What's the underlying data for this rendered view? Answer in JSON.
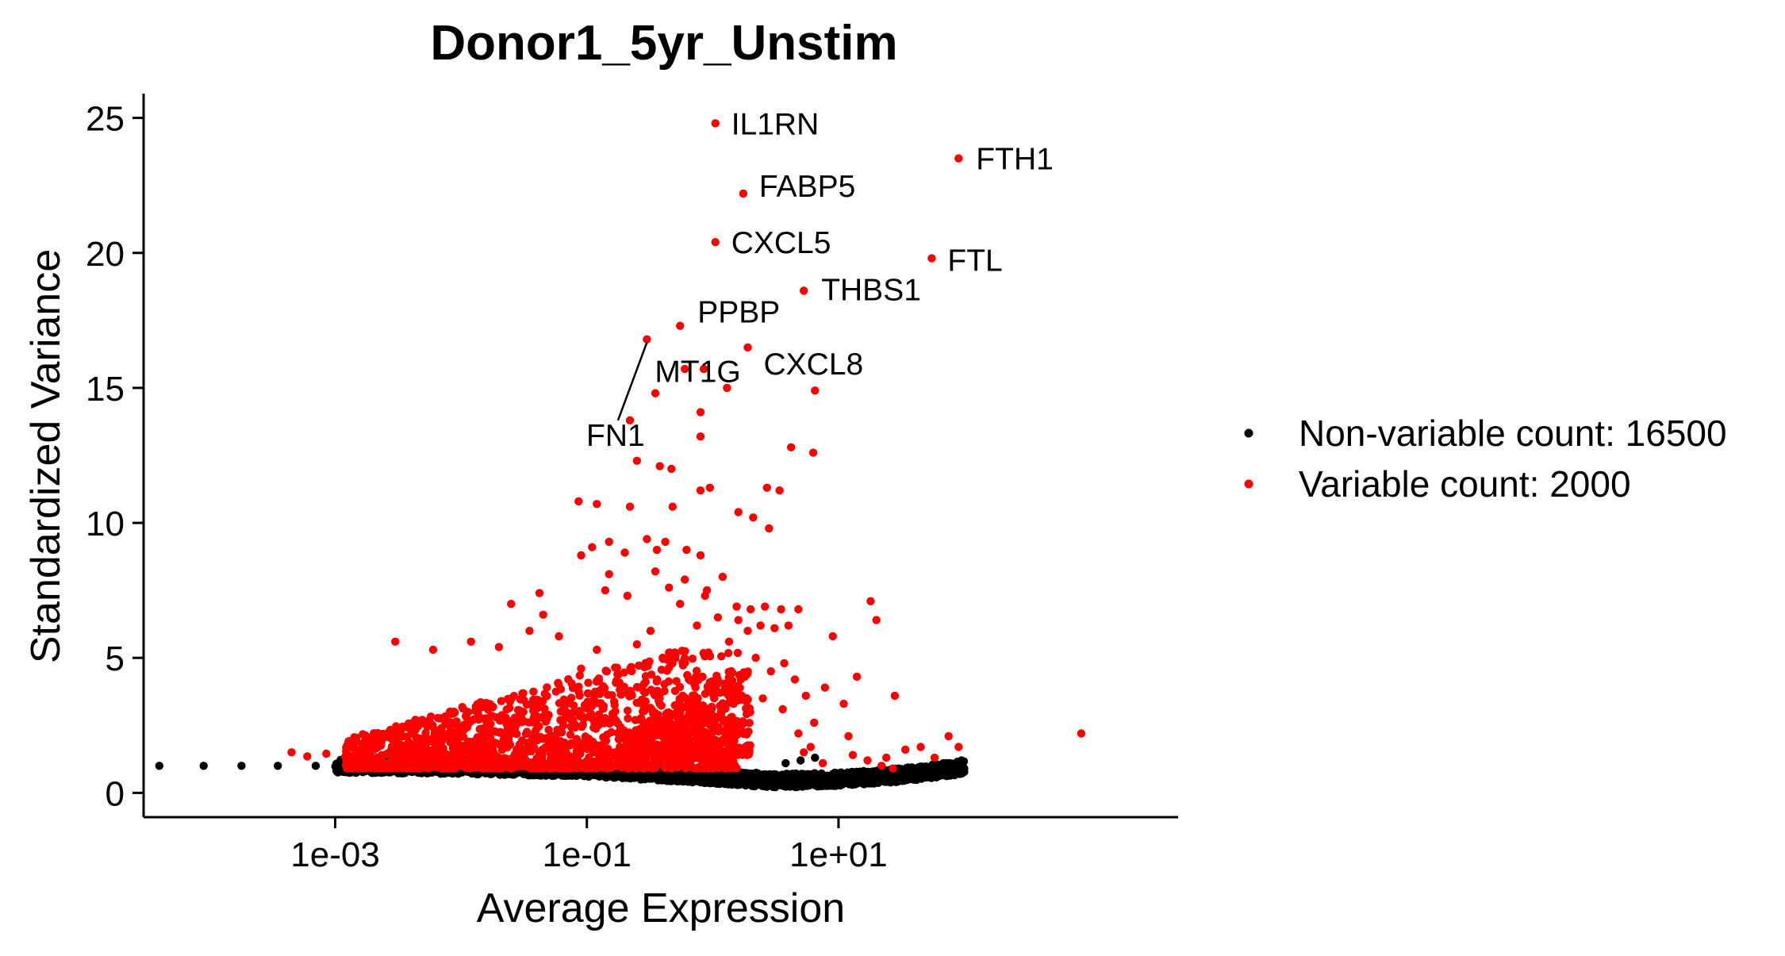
{
  "chart_data": {
    "type": "scatter",
    "title": "Donor1_5yr_Unstim",
    "xlabel": "Average Expression",
    "ylabel": "Standardized Variance",
    "x_scale": "log10",
    "xlim": [
      3e-05,
      5000
    ],
    "ylim": [
      -0.9,
      25.9
    ],
    "x_ticks": [
      {
        "value": 0.001,
        "label": "1e-03"
      },
      {
        "value": 0.1,
        "label": "1e-01"
      },
      {
        "value": 10,
        "label": "1e+01"
      }
    ],
    "y_ticks": [
      {
        "value": 0,
        "label": "0"
      },
      {
        "value": 5,
        "label": "5"
      },
      {
        "value": 10,
        "label": "10"
      },
      {
        "value": 15,
        "label": "15"
      },
      {
        "value": 20,
        "label": "20"
      },
      {
        "value": 25,
        "label": "25"
      }
    ],
    "grid": false,
    "legend_position": "right",
    "series": [
      {
        "name": "Non-variable count: 16500",
        "color": "#000000"
      },
      {
        "name": "Variable count: 2000",
        "color": "#FF0000"
      }
    ],
    "labeled_genes": [
      {
        "label": "IL1RN",
        "x": 1.05,
        "y": 24.8
      },
      {
        "label": "FTH1",
        "x": 90,
        "y": 23.5
      },
      {
        "label": "FABP5",
        "x": 1.75,
        "y": 22.2
      },
      {
        "label": "CXCL5",
        "x": 1.05,
        "y": 20.4
      },
      {
        "label": "FTL",
        "x": 55,
        "y": 19.8
      },
      {
        "label": "THBS1",
        "x": 5.3,
        "y": 18.6
      },
      {
        "label": "PPBP",
        "x": 0.55,
        "y": 17.3
      },
      {
        "label": "CXCL8",
        "x": 1.9,
        "y": 16.5
      },
      {
        "label": "MT1G",
        "x": 0.3,
        "y": 16.8
      },
      {
        "label": "FN1",
        "x": 0.22,
        "y": 13.8
      }
    ],
    "variable_points": [
      [
        0.85,
        15.7
      ],
      [
        0.6,
        15.7
      ],
      [
        1.3,
        15.0
      ],
      [
        6.5,
        14.9
      ],
      [
        0.8,
        14.1
      ],
      [
        0.35,
        14.8
      ],
      [
        0.8,
        13.2
      ],
      [
        4.2,
        12.8
      ],
      [
        6.3,
        12.6
      ],
      [
        0.25,
        12.3
      ],
      [
        0.38,
        12.1
      ],
      [
        0.47,
        12.0
      ],
      [
        0.95,
        11.3
      ],
      [
        2.7,
        11.3
      ],
      [
        3.4,
        11.2
      ],
      [
        0.086,
        10.8
      ],
      [
        0.12,
        10.7
      ],
      [
        0.22,
        10.6
      ],
      [
        0.48,
        10.6
      ],
      [
        0.8,
        11.2
      ],
      [
        1.6,
        10.4
      ],
      [
        2.1,
        10.2
      ],
      [
        2.8,
        9.8
      ],
      [
        0.15,
        9.3
      ],
      [
        0.3,
        9.4
      ],
      [
        0.42,
        9.3
      ],
      [
        0.2,
        8.9
      ],
      [
        0.09,
        8.8
      ],
      [
        0.11,
        9.1
      ],
      [
        0.36,
        9.0
      ],
      [
        0.62,
        9.0
      ],
      [
        0.8,
        8.8
      ],
      [
        0.15,
        8.1
      ],
      [
        0.35,
        8.2
      ],
      [
        0.6,
        7.9
      ],
      [
        0.14,
        7.5
      ],
      [
        0.45,
        7.6
      ],
      [
        0.21,
        7.3
      ],
      [
        0.55,
        7.0
      ],
      [
        0.87,
        7.3
      ],
      [
        1.2,
        8.0
      ],
      [
        0.9,
        7.5
      ],
      [
        1.55,
        6.9
      ],
      [
        2.0,
        6.8
      ],
      [
        2.6,
        6.9
      ],
      [
        3.5,
        6.8
      ],
      [
        4.8,
        6.8
      ],
      [
        18,
        7.1
      ],
      [
        20,
        6.4
      ],
      [
        1.1,
        6.5
      ],
      [
        1.6,
        6.4
      ],
      [
        1.9,
        6.0
      ],
      [
        2.4,
        6.2
      ],
      [
        3.1,
        6.1
      ],
      [
        4.0,
        6.2
      ],
      [
        9,
        5.8
      ],
      [
        0.32,
        6.0
      ],
      [
        0.75,
        6.2
      ],
      [
        0.045,
        6.6
      ],
      [
        0.042,
        7.4
      ],
      [
        0.025,
        7.0
      ],
      [
        0.012,
        5.6
      ],
      [
        0.003,
        5.6
      ],
      [
        0.006,
        5.3
      ],
      [
        0.02,
        5.4
      ],
      [
        0.035,
        6.0
      ],
      [
        0.06,
        5.8
      ],
      [
        1.35,
        5.6
      ],
      [
        2.2,
        5.0
      ],
      [
        3.7,
        4.8
      ],
      [
        2.9,
        4.5
      ],
      [
        1.8,
        4.3
      ],
      [
        0.95,
        4.1
      ],
      [
        0.5,
        5.2
      ],
      [
        0.25,
        5.5
      ],
      [
        0.12,
        5.3
      ],
      [
        0.09,
        4.6
      ],
      [
        4.5,
        4.2
      ],
      [
        5.5,
        3.6
      ],
      [
        7.8,
        3.9
      ],
      [
        13,
        1.4
      ],
      [
        7.5,
        1.1
      ],
      [
        5.3,
        1.5
      ],
      [
        4.8,
        2.2
      ],
      [
        6.4,
        2.6
      ],
      [
        3.6,
        3.1
      ],
      [
        2.5,
        3.5
      ],
      [
        6.0,
        1.7
      ],
      [
        12,
        2.1
      ],
      [
        22,
        1.0
      ],
      [
        27,
        0.9
      ],
      [
        34,
        1.6
      ],
      [
        17,
        1.2
      ],
      [
        11,
        3.3
      ],
      [
        28,
        3.6
      ],
      [
        14,
        4.3
      ],
      [
        24,
        1.3
      ],
      [
        45,
        1.7
      ],
      [
        75,
        2.1
      ],
      [
        90,
        1.7
      ],
      [
        850,
        2.2
      ],
      [
        58,
        1.3
      ],
      [
        0.00045,
        1.5
      ],
      [
        0.0006,
        1.35
      ],
      [
        0.00085,
        1.45
      ]
    ],
    "variable_cloud": [
      {
        "x_min": 0.0012,
        "x_max": 1.6,
        "y_min": 0.9,
        "y_max": 5.3,
        "count": 1500
      },
      {
        "x_min": 0.2,
        "x_max": 2.0,
        "y_min": 1.4,
        "y_max": 4.5,
        "count": 360
      }
    ],
    "nonvariable_points": [
      [
        4e-05,
        1.0
      ],
      [
        9e-05,
        1.0
      ],
      [
        0.00018,
        1.0
      ],
      [
        0.00035,
        1.0
      ],
      [
        0.0007,
        1.0
      ],
      [
        20,
        0.8
      ],
      [
        30,
        0.9
      ],
      [
        45,
        0.8
      ],
      [
        60,
        0.9
      ],
      [
        70,
        0.9
      ],
      [
        85,
        1.0
      ],
      [
        95,
        1.2
      ],
      [
        100,
        0.9
      ],
      [
        16,
        0.6
      ],
      [
        12,
        0.6
      ],
      [
        9,
        0.7
      ],
      [
        6.5,
        1.3
      ],
      [
        5.0,
        1.2
      ],
      [
        3.8,
        1.1
      ]
    ],
    "nonvariable_band": [
      {
        "x": 0.001,
        "y": 1.0
      },
      {
        "x": 0.01,
        "y": 0.95
      },
      {
        "x": 0.1,
        "y": 0.85
      },
      {
        "x": 1,
        "y": 0.6
      },
      {
        "x": 3,
        "y": 0.45
      },
      {
        "x": 10,
        "y": 0.5
      },
      {
        "x": 30,
        "y": 0.65
      },
      {
        "x": 100,
        "y": 0.95
      }
    ]
  }
}
